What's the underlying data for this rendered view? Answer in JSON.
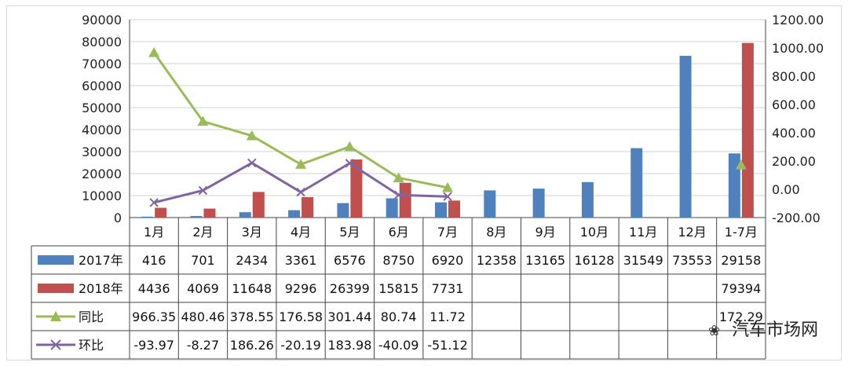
{
  "chart_data": {
    "type": "bar",
    "categories": [
      "1月",
      "2月",
      "3月",
      "4月",
      "5月",
      "6月",
      "7月",
      "8月",
      "9月",
      "10月",
      "11月",
      "12月",
      "1-7月"
    ],
    "series": [
      {
        "name": "2017年",
        "kind": "bar",
        "axis": "left",
        "color": "#4f81bd",
        "values": [
          416,
          701,
          2434,
          3361,
          6576,
          8750,
          6920,
          12358,
          13165,
          16128,
          31549,
          73553,
          29158
        ]
      },
      {
        "name": "2018年",
        "kind": "bar",
        "axis": "left",
        "color": "#c0504d",
        "values": [
          4436,
          4069,
          11648,
          9296,
          26399,
          15815,
          7731,
          null,
          null,
          null,
          null,
          null,
          79394
        ]
      },
      {
        "name": "同比",
        "kind": "line",
        "axis": "right",
        "color": "#9bbb59",
        "marker": "triangle",
        "values": [
          966.35,
          480.46,
          378.55,
          176.58,
          301.44,
          80.74,
          11.72,
          null,
          null,
          null,
          null,
          null,
          172.29
        ]
      },
      {
        "name": "环比",
        "kind": "line",
        "axis": "right",
        "color": "#8064a2",
        "marker": "x",
        "values": [
          -93.97,
          -8.27,
          186.26,
          -20.19,
          183.98,
          -40.09,
          -51.12,
          null,
          null,
          null,
          null,
          null,
          null
        ]
      }
    ],
    "table_text": {
      "2017年": [
        "416",
        "701",
        "2434",
        "3361",
        "6576",
        "8750",
        "6920",
        "12358",
        "13165",
        "16128",
        "31549",
        "73553",
        "29158"
      ],
      "2018年": [
        "4436",
        "4069",
        "11648",
        "9296",
        "26399",
        "15815",
        "7731",
        "",
        "",
        "",
        "",
        "",
        "79394"
      ],
      "同比": [
        "966.35",
        "480.46",
        "378.55",
        "176.58",
        "301.44",
        "80.74",
        "11.72",
        "",
        "",
        "",
        "",
        "",
        "172.29"
      ],
      "环比": [
        "-93.97",
        "-8.27",
        "186.26",
        "-20.19",
        "183.98",
        "-40.09",
        "-51.12",
        "",
        "",
        "",
        "",
        "",
        ""
      ]
    },
    "yleft": {
      "min": 0,
      "max": 90000,
      "ticks": [
        "0",
        "10000",
        "20000",
        "30000",
        "40000",
        "50000",
        "60000",
        "70000",
        "80000",
        "90000"
      ]
    },
    "yright": {
      "min": -200,
      "max": 1200,
      "ticks": [
        "-200.00",
        "0.00",
        "200.00",
        "400.00",
        "600.00",
        "800.00",
        "1000.00",
        "1200.00"
      ]
    },
    "grid": true,
    "legend": "data-table"
  },
  "watermark": {
    "text": "汽车市场网",
    "icon": "wechat-icon"
  }
}
